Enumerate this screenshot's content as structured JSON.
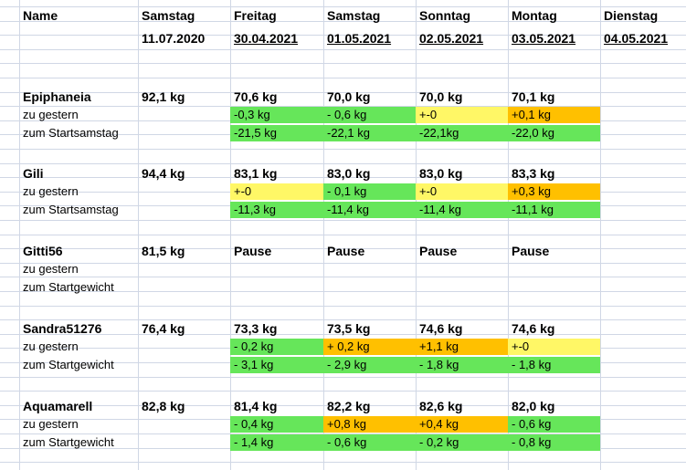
{
  "header": {
    "name_label": "Name",
    "columns": [
      {
        "day": "Samstag",
        "date": "11.07.2020"
      },
      {
        "day": "Freitag",
        "date": "30.04.2021"
      },
      {
        "day": "Samstag",
        "date": "01.05.2021"
      },
      {
        "day": "Sonntag",
        "date": "02.05.2021"
      },
      {
        "day": "Montag",
        "date": "03.05.2021"
      },
      {
        "day": "Dienstag",
        "date": "04.05.2021"
      }
    ]
  },
  "people": [
    {
      "name": "Epiphaneia",
      "start": "92,1 kg",
      "weights": [
        "70,6 kg",
        "70,0 kg",
        "70,0 kg",
        "70,1 kg"
      ],
      "diff_label": "zu gestern",
      "diffs": [
        "-0,3 kg",
        "- 0,6 kg",
        "+-0",
        "+0,1 kg"
      ],
      "diff_colors": [
        "green",
        "green",
        "yellow",
        "orange"
      ],
      "total_label": "zum Startsamstag",
      "totals": [
        "-21,5 kg",
        "-22,1 kg",
        "-22,1kg",
        "-22,0 kg"
      ],
      "total_colors": [
        "green",
        "green",
        "green",
        "green"
      ]
    },
    {
      "name": "Gili",
      "start": "94,4 kg",
      "weights": [
        "83,1 kg",
        "83,0 kg",
        "83,0 kg",
        "83,3 kg"
      ],
      "diff_label": "zu gestern",
      "diffs": [
        "+-0",
        "- 0,1 kg",
        "+-0",
        "+0,3 kg"
      ],
      "diff_colors": [
        "yellow",
        "green",
        "yellow",
        "orange"
      ],
      "total_label": "zum Startsamstag",
      "totals": [
        "-11,3 kg",
        "-11,4 kg",
        "-11,4 kg",
        "-11,1 kg"
      ],
      "total_colors": [
        "green",
        "green",
        "green",
        "green"
      ]
    },
    {
      "name": "Gitti56",
      "start": "81,5 kg",
      "weights": [
        "Pause",
        "Pause",
        "Pause",
        "Pause"
      ],
      "diff_label": "zu gestern",
      "diffs": [
        "",
        "",
        "",
        ""
      ],
      "diff_colors": [
        "",
        "",
        "",
        ""
      ],
      "total_label": "zum Startgewicht",
      "totals": [
        "",
        "",
        "",
        ""
      ],
      "total_colors": [
        "",
        "",
        "",
        ""
      ]
    },
    {
      "name": "Sandra51276",
      "start": "76,4 kg",
      "weights": [
        "73,3 kg",
        "73,5 kg",
        "74,6 kg",
        "74,6 kg"
      ],
      "diff_label": "zu gestern",
      "diffs": [
        "- 0,2 kg",
        "+ 0,2 kg",
        "+1,1 kg",
        "+-0"
      ],
      "diff_colors": [
        "green",
        "orange",
        "orange",
        "yellow"
      ],
      "total_label": "zum Startgewicht",
      "totals": [
        "- 3,1 kg",
        "- 2,9 kg",
        "- 1,8 kg",
        "- 1,8 kg"
      ],
      "total_colors": [
        "green",
        "green",
        "green",
        "green"
      ]
    },
    {
      "name": "Aquamarell",
      "start": "82,8 kg",
      "weights": [
        "81,4 kg",
        "82,2 kg",
        "82,6 kg",
        "82,0 kg"
      ],
      "diff_label": "zu gestern",
      "diffs": [
        "- 0,4 kg",
        "+0,8 kg",
        "+0,4 kg",
        "- 0,6 kg"
      ],
      "diff_colors": [
        "green",
        "orange",
        "orange",
        "green"
      ],
      "total_label": "zum Startgewicht",
      "totals": [
        "- 1,4 kg",
        "- 0,6 kg",
        "- 0,2 kg",
        "- 0,8 kg"
      ],
      "total_colors": [
        "green",
        "green",
        "green",
        "green"
      ]
    }
  ],
  "colors": {
    "green": "#66e65a",
    "yellow": "#fff766",
    "orange": "#ffc000",
    "grid": "#d0d7e5"
  }
}
